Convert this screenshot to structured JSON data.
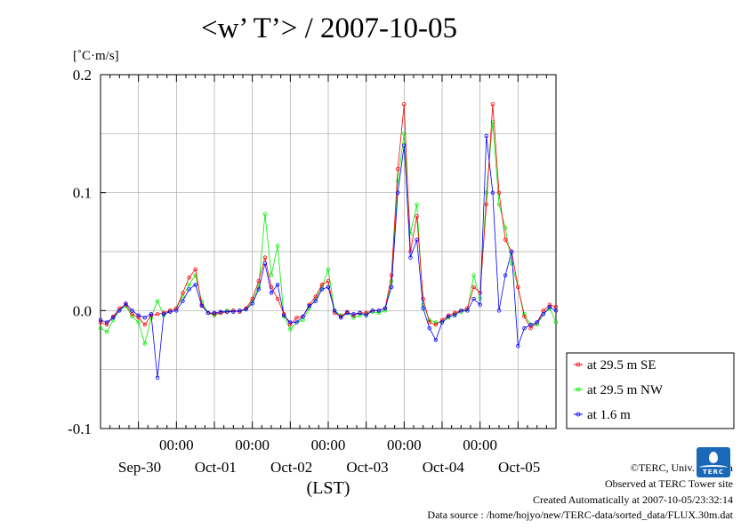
{
  "chart_data": {
    "type": "line",
    "title": "<w’ T’> / 2007-10-05",
    "ylabel": "[˚C·m/s]",
    "xlabel": "(LST)",
    "ylim": [
      -0.1,
      0.2
    ],
    "xlim": [
      0,
      144
    ],
    "yticks": [
      {
        "value": 0.2,
        "label": "0.2"
      },
      {
        "value": 0.1,
        "label": "0.1"
      },
      {
        "value": 0.0,
        "label": "0.0"
      },
      {
        "value": -0.1,
        "label": "-0.1"
      }
    ],
    "xticks": [
      {
        "hour": 24,
        "time": "00:00",
        "date": "Oct-01"
      },
      {
        "hour": 48,
        "time": "00:00",
        "date": "Oct-02"
      },
      {
        "hour": 72,
        "time": "00:00",
        "date": "Oct-03"
      },
      {
        "hour": 96,
        "time": "00:00",
        "date": "Oct-04"
      },
      {
        "hour": 120,
        "time": "00:00",
        "date": "Oct-05"
      }
    ],
    "first_date_label": "Sep-30",
    "grid": true,
    "legend_position": "right",
    "series": [
      {
        "name": "at 29.5 m SE",
        "color": "#ff0000",
        "x": [
          0,
          2,
          4,
          6,
          8,
          10,
          12,
          14,
          16,
          18,
          20,
          22,
          24,
          26,
          28,
          30,
          32,
          34,
          36,
          38,
          40,
          42,
          44,
          46,
          48,
          50,
          52,
          54,
          56,
          58,
          60,
          62,
          64,
          66,
          68,
          70,
          72,
          74,
          76,
          78,
          80,
          82,
          84,
          86,
          88,
          90,
          92,
          94,
          96,
          98,
          100,
          102,
          104,
          106,
          108,
          110,
          112,
          114,
          116,
          118,
          120,
          122,
          124,
          126,
          128,
          130,
          132,
          134,
          136,
          138,
          140,
          142,
          144
        ],
        "y": [
          -0.01,
          -0.012,
          -0.005,
          0.002,
          0.005,
          -0.003,
          -0.006,
          -0.012,
          -0.004,
          -0.003,
          -0.002,
          0.0,
          0.002,
          0.015,
          0.028,
          0.035,
          0.005,
          -0.002,
          -0.003,
          -0.002,
          -0.001,
          0.0,
          -0.001,
          0.002,
          0.01,
          0.025,
          0.045,
          0.02,
          0.01,
          -0.003,
          -0.012,
          -0.006,
          -0.005,
          0.005,
          0.012,
          0.022,
          0.025,
          -0.002,
          -0.005,
          -0.001,
          -0.004,
          -0.002,
          -0.002,
          0.0,
          0.0,
          0.002,
          0.03,
          0.12,
          0.175,
          0.05,
          0.08,
          0.01,
          -0.01,
          -0.012,
          -0.008,
          -0.004,
          -0.002,
          0.0,
          0.002,
          0.02,
          0.015,
          0.09,
          0.175,
          0.1,
          0.06,
          0.05,
          0.02,
          -0.005,
          -0.015,
          -0.01,
          0.0,
          0.005,
          0.003
        ]
      },
      {
        "name": "at 29.5 m NW",
        "color": "#00ee00",
        "x": [
          0,
          2,
          4,
          6,
          8,
          10,
          12,
          14,
          16,
          18,
          20,
          22,
          24,
          26,
          28,
          30,
          32,
          34,
          36,
          38,
          40,
          42,
          44,
          46,
          48,
          50,
          52,
          54,
          56,
          58,
          60,
          62,
          64,
          66,
          68,
          70,
          72,
          74,
          76,
          78,
          80,
          82,
          84,
          86,
          88,
          90,
          92,
          94,
          96,
          98,
          100,
          102,
          104,
          106,
          108,
          110,
          112,
          114,
          116,
          118,
          120,
          122,
          124,
          126,
          128,
          130,
          132,
          134,
          136,
          138,
          140,
          142,
          144
        ],
        "y": [
          -0.015,
          -0.018,
          -0.008,
          0.0,
          0.004,
          -0.005,
          -0.01,
          -0.028,
          -0.006,
          0.008,
          -0.004,
          0.0,
          0.002,
          0.012,
          0.022,
          0.03,
          0.008,
          -0.002,
          -0.004,
          -0.002,
          0.0,
          0.0,
          -0.001,
          0.001,
          0.008,
          0.02,
          0.082,
          0.03,
          0.055,
          -0.005,
          -0.016,
          -0.01,
          -0.008,
          0.002,
          0.01,
          0.02,
          0.035,
          0.0,
          -0.004,
          -0.002,
          -0.006,
          -0.004,
          -0.003,
          -0.001,
          -0.002,
          0.0,
          0.025,
          0.11,
          0.15,
          0.065,
          0.09,
          0.005,
          -0.008,
          -0.01,
          -0.01,
          -0.006,
          -0.003,
          -0.001,
          0.0,
          0.03,
          0.01,
          0.1,
          0.16,
          0.09,
          0.07,
          0.04,
          0.02,
          -0.003,
          -0.012,
          -0.012,
          -0.003,
          0.002,
          -0.01
        ]
      },
      {
        "name": "at 1.6 m",
        "color": "#0000ff",
        "x": [
          0,
          2,
          4,
          6,
          8,
          10,
          12,
          14,
          16,
          18,
          20,
          22,
          24,
          26,
          28,
          30,
          32,
          34,
          36,
          38,
          40,
          42,
          44,
          46,
          48,
          50,
          52,
          54,
          56,
          58,
          60,
          62,
          64,
          66,
          68,
          70,
          72,
          74,
          76,
          78,
          80,
          82,
          84,
          86,
          88,
          90,
          92,
          94,
          96,
          98,
          100,
          102,
          104,
          106,
          108,
          110,
          112,
          114,
          116,
          118,
          120,
          122,
          124,
          126,
          128,
          130,
          132,
          134,
          136,
          138,
          140,
          142,
          144
        ],
        "y": [
          -0.008,
          -0.01,
          -0.006,
          0.0,
          0.006,
          0.0,
          -0.004,
          -0.006,
          -0.003,
          -0.057,
          -0.003,
          -0.001,
          0.0,
          0.008,
          0.018,
          0.022,
          0.004,
          -0.002,
          -0.002,
          -0.001,
          -0.001,
          -0.001,
          0.0,
          0.001,
          0.006,
          0.018,
          0.04,
          0.015,
          0.022,
          -0.004,
          -0.01,
          -0.01,
          -0.005,
          0.004,
          0.008,
          0.018,
          0.02,
          0.0,
          -0.006,
          -0.002,
          -0.003,
          -0.002,
          -0.004,
          0.0,
          0.0,
          0.002,
          0.02,
          0.1,
          0.14,
          0.045,
          0.06,
          0.002,
          -0.015,
          -0.025,
          -0.01,
          -0.005,
          -0.004,
          0.0,
          0.0,
          0.01,
          0.005,
          0.148,
          0.1,
          0.0,
          0.03,
          0.05,
          -0.03,
          -0.015,
          -0.012,
          -0.01,
          -0.003,
          0.003,
          0.0
        ]
      }
    ]
  },
  "footer": {
    "copyright": "©TERC, Univ. Tsukuba",
    "observed": "Observed at TERC Tower site",
    "created": "Created Automatically at 2007-10-05/23:32:14",
    "source": "Data source : /home/hojyo/new/TERC-data/sorted_data/FLUX.30m.dat",
    "logo_text": "TERC"
  }
}
